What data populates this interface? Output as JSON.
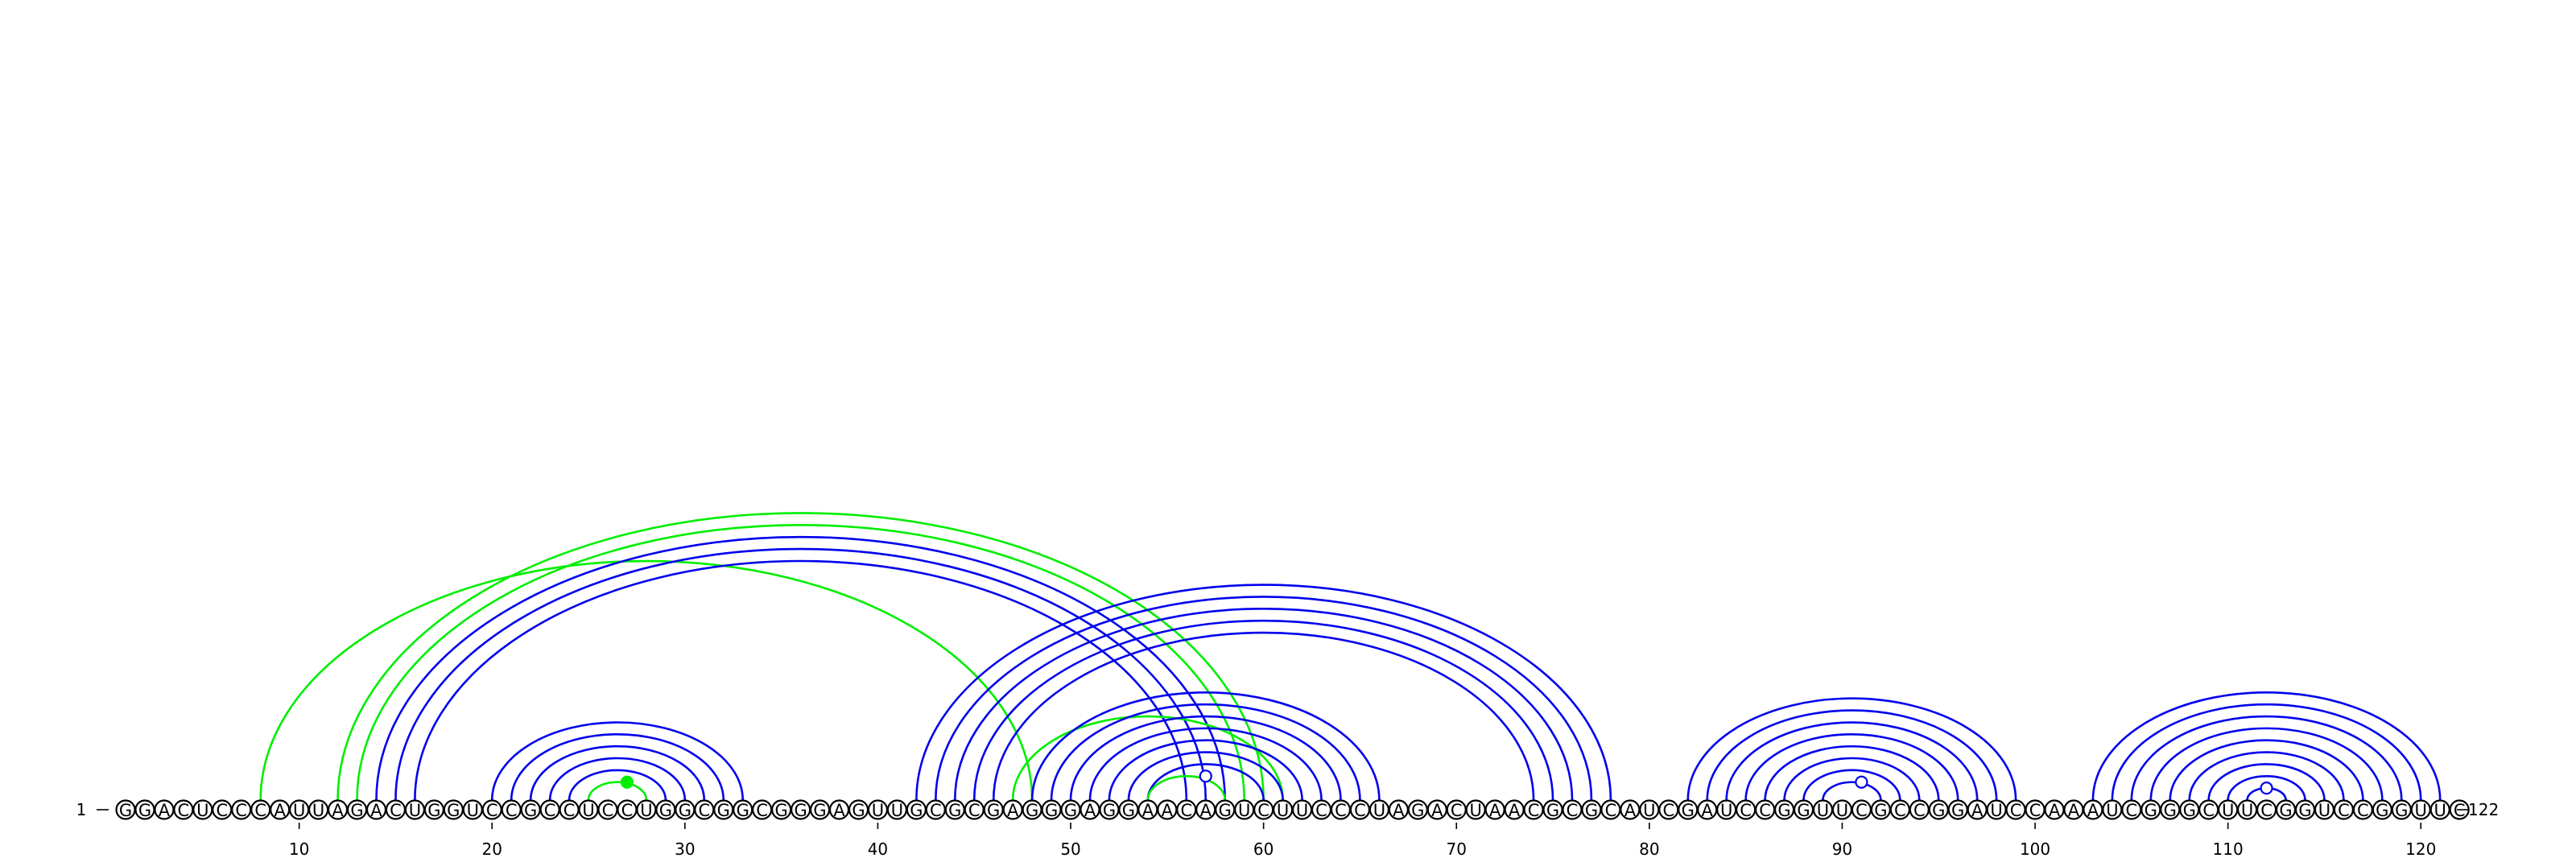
{
  "sequence": "GGACUCCCAUUAGACUGGUCCGCCUCCUGGCGGCGGGAGUUGCGCGAGGGAGGAACAGUCUUCCCUAGACUAACGCGCAUCGAUCCGGUUCGCCGGAUCCAAAUCGGGCUUCGGUCCGGUUC",
  "start_label": "1",
  "end_label": "122",
  "ticks": [
    "10",
    "20",
    "30",
    "40",
    "50",
    "60",
    "70",
    "80",
    "90",
    "100",
    "110",
    "120"
  ],
  "colors": {
    "blue": "#0000ee",
    "green": "#00ee00",
    "text": "#000000"
  },
  "pairs": [
    {
      "i": 8,
      "j": 48,
      "color": "green"
    },
    {
      "i": 12,
      "j": 60,
      "color": "green"
    },
    {
      "i": 13,
      "j": 59,
      "color": "green"
    },
    {
      "i": 14,
      "j": 58,
      "color": "blue"
    },
    {
      "i": 15,
      "j": 57,
      "color": "blue"
    },
    {
      "i": 16,
      "j": 56,
      "color": "blue"
    },
    {
      "i": 20,
      "j": 33,
      "color": "blue"
    },
    {
      "i": 21,
      "j": 32,
      "color": "blue"
    },
    {
      "i": 22,
      "j": 31,
      "color": "blue"
    },
    {
      "i": 23,
      "j": 30,
      "color": "blue"
    },
    {
      "i": 24,
      "j": 29,
      "color": "blue"
    },
    {
      "i": 25,
      "j": 28,
      "color": "green"
    },
    {
      "i": 42,
      "j": 78,
      "color": "blue"
    },
    {
      "i": 43,
      "j": 77,
      "color": "blue"
    },
    {
      "i": 44,
      "j": 76,
      "color": "blue"
    },
    {
      "i": 45,
      "j": 75,
      "color": "blue"
    },
    {
      "i": 46,
      "j": 74,
      "color": "blue"
    },
    {
      "i": 47,
      "j": 61,
      "color": "green"
    },
    {
      "i": 48,
      "j": 66,
      "color": "blue"
    },
    {
      "i": 49,
      "j": 65,
      "color": "blue"
    },
    {
      "i": 50,
      "j": 64,
      "color": "blue"
    },
    {
      "i": 51,
      "j": 63,
      "color": "blue"
    },
    {
      "i": 52,
      "j": 62,
      "color": "blue"
    },
    {
      "i": 53,
      "j": 61,
      "color": "blue"
    },
    {
      "i": 54,
      "j": 60,
      "color": "blue"
    },
    {
      "i": 54,
      "j": 58,
      "color": "green"
    },
    {
      "i": 82,
      "j": 99,
      "color": "blue"
    },
    {
      "i": 83,
      "j": 98,
      "color": "blue"
    },
    {
      "i": 84,
      "j": 97,
      "color": "blue"
    },
    {
      "i": 85,
      "j": 96,
      "color": "blue"
    },
    {
      "i": 86,
      "j": 95,
      "color": "blue"
    },
    {
      "i": 87,
      "j": 94,
      "color": "blue"
    },
    {
      "i": 88,
      "j": 93,
      "color": "blue"
    },
    {
      "i": 89,
      "j": 92,
      "color": "blue"
    },
    {
      "i": 103,
      "j": 121,
      "color": "blue"
    },
    {
      "i": 104,
      "j": 120,
      "color": "blue"
    },
    {
      "i": 105,
      "j": 119,
      "color": "blue"
    },
    {
      "i": 106,
      "j": 118,
      "color": "blue"
    },
    {
      "i": 107,
      "j": 117,
      "color": "blue"
    },
    {
      "i": 108,
      "j": 116,
      "color": "blue"
    },
    {
      "i": 109,
      "j": 115,
      "color": "blue"
    },
    {
      "i": 110,
      "j": 114,
      "color": "blue"
    },
    {
      "i": 111,
      "j": 113,
      "color": "blue"
    }
  ],
  "markers": [
    {
      "pos": 27,
      "color": "green",
      "filled": true
    },
    {
      "pos": 57,
      "color": "blue",
      "filled": false
    },
    {
      "pos": 91,
      "color": "blue",
      "filled": false
    },
    {
      "pos": 112,
      "color": "blue",
      "filled": false
    }
  ]
}
